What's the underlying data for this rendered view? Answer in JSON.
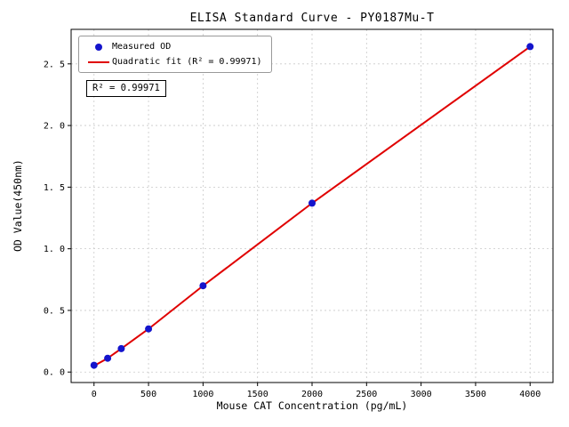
{
  "chart_data": {
    "type": "scatter",
    "title": "ELISA Standard Curve - PY0187Mu-T",
    "xlabel": "Mouse CAT Concentration (pg/mL)",
    "ylabel": "OD Value(450nm)",
    "xlim": [
      -210,
      4210
    ],
    "ylim": [
      -0.085,
      2.78
    ],
    "xticks": [
      0,
      500,
      1000,
      1500,
      2000,
      2500,
      3000,
      3500,
      4000
    ],
    "xtick_labels": [
      "0",
      "500",
      "1000",
      "1500",
      "2000",
      "2500",
      "3000",
      "3500",
      "4000"
    ],
    "yticks": [
      0.0,
      0.5,
      1.0,
      1.5,
      2.0,
      2.5
    ],
    "ytick_labels": [
      "0. 0",
      "0. 5",
      "1. 0",
      "1. 5",
      "2. 0",
      "2. 5"
    ],
    "grid": true,
    "legend_position": "upper-left",
    "annotation": "R² = 0.99971",
    "r_squared": "0.99971",
    "colors": {
      "point": "#1414cc",
      "line": "#e00000",
      "grid": "#c9c9c9",
      "spine": "#000000"
    },
    "series": [
      {
        "name": "Measured OD",
        "type": "scatter",
        "points": [
          {
            "x": 0,
            "y": 0.055
          },
          {
            "x": 125,
            "y": 0.112
          },
          {
            "x": 250,
            "y": 0.19
          },
          {
            "x": 500,
            "y": 0.35
          },
          {
            "x": 1000,
            "y": 0.7
          },
          {
            "x": 2000,
            "y": 1.37
          },
          {
            "x": 4000,
            "y": 2.64
          }
        ]
      },
      {
        "name": "Quadratic fit (R² = 0.99971)",
        "type": "line",
        "points": [
          {
            "x": 0,
            "y": 0.05
          },
          {
            "x": 125,
            "y": 0.112
          },
          {
            "x": 250,
            "y": 0.19
          },
          {
            "x": 500,
            "y": 0.35
          },
          {
            "x": 1000,
            "y": 0.7
          },
          {
            "x": 2000,
            "y": 1.37
          },
          {
            "x": 4000,
            "y": 2.64
          }
        ]
      }
    ]
  }
}
